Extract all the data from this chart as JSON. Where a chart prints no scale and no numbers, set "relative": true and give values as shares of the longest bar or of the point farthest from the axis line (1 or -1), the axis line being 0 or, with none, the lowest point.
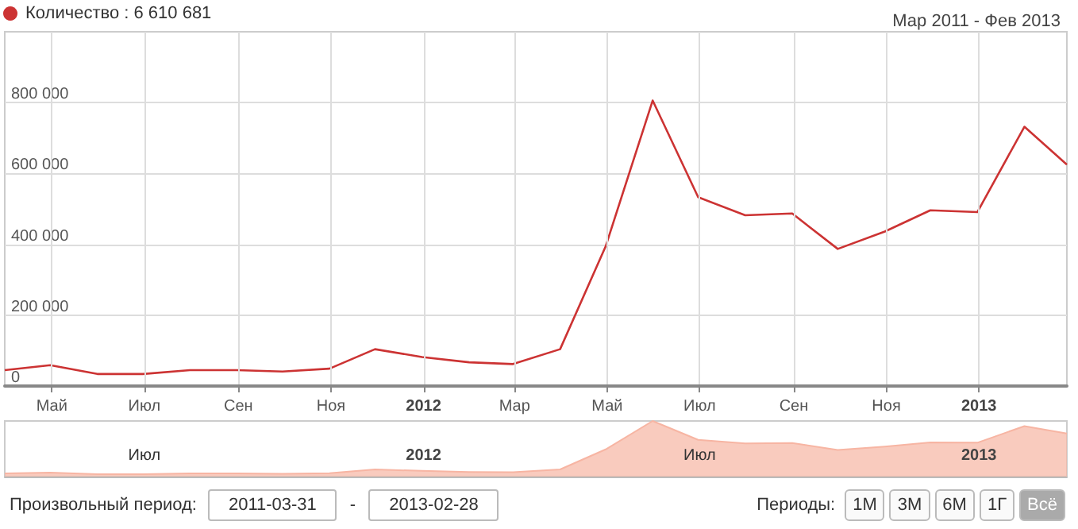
{
  "chart_data": [
    {
      "type": "line",
      "subtitle": "Мар 2011 - Фев 2013",
      "x": [
        "2011-03-31",
        "2011-04-30",
        "2011-05-31",
        "2011-06-30",
        "2011-07-31",
        "2011-08-31",
        "2011-09-30",
        "2011-10-31",
        "2011-11-30",
        "2011-12-31",
        "2012-01-31",
        "2012-02-29",
        "2012-03-31",
        "2012-04-30",
        "2012-05-31",
        "2012-06-30",
        "2012-07-31",
        "2012-08-31",
        "2012-09-30",
        "2012-10-31",
        "2012-11-30",
        "2012-12-31",
        "2013-01-31",
        "2013-02-28"
      ],
      "series": [
        {
          "name": "Количество : 6 610 681",
          "color": "#cc3333",
          "values": [
            45000,
            59000,
            34000,
            34000,
            45000,
            45000,
            41000,
            49000,
            104000,
            82000,
            67000,
            62000,
            104000,
            394000,
            806000,
            533000,
            482000,
            487000,
            387000,
            436000,
            496000,
            491000,
            732000,
            625000
          ]
        }
      ],
      "xlim": [
        "2011-03-31",
        "2013-02-28"
      ],
      "xticks": [
        {
          "value": "2011-05-01",
          "label": "Май"
        },
        {
          "value": "2011-07-01",
          "label": "Июл"
        },
        {
          "value": "2011-09-01",
          "label": "Сен"
        },
        {
          "value": "2011-11-01",
          "label": "Ноя"
        },
        {
          "value": "2012-01-01",
          "label": "2012"
        },
        {
          "value": "2012-03-01",
          "label": "Мар"
        },
        {
          "value": "2012-05-01",
          "label": "Май"
        },
        {
          "value": "2012-07-01",
          "label": "Июл"
        },
        {
          "value": "2012-09-01",
          "label": "Сен"
        },
        {
          "value": "2012-11-01",
          "label": "Ноя"
        },
        {
          "value": "2013-01-01",
          "label": "2013"
        }
      ],
      "ylim": [
        0,
        1000000
      ],
      "yticks": [
        {
          "value": 0,
          "label": "0"
        },
        {
          "value": 200000,
          "label": "200 000"
        },
        {
          "value": 400000,
          "label": "400 000"
        },
        {
          "value": 600000,
          "label": "600 000"
        },
        {
          "value": 800000,
          "label": "800 000"
        }
      ],
      "grid": true,
      "legend": "top left",
      "marker": "none"
    },
    {
      "type": "area",
      "relative": true,
      "tick_labels": "x",
      "x": [
        "2011-03-31",
        "2011-04-30",
        "2011-05-31",
        "2011-06-30",
        "2011-07-31",
        "2011-08-31",
        "2011-09-30",
        "2011-10-31",
        "2011-11-30",
        "2011-12-31",
        "2012-01-31",
        "2012-02-29",
        "2012-03-31",
        "2012-04-30",
        "2012-05-31",
        "2012-06-30",
        "2012-07-31",
        "2012-08-31",
        "2012-09-30",
        "2012-10-31",
        "2012-11-30",
        "2012-12-31",
        "2013-01-31",
        "2013-02-28"
      ],
      "series": [
        {
          "color": "#f7b5a3",
          "values": [
            0.056,
            0.073,
            0.042,
            0.042,
            0.056,
            0.056,
            0.051,
            0.061,
            0.129,
            0.102,
            0.083,
            0.077,
            0.129,
            0.489,
            1,
            0.661,
            0.598,
            0.604,
            0.48,
            0.541,
            0.615,
            0.609,
            0.908,
            0.775
          ]
        }
      ],
      "xlim": [
        "2011-03-31",
        "2013-02-28"
      ],
      "xticks": [
        {
          "value": "2011-07-01",
          "label": "Июл"
        },
        {
          "value": "2012-01-01",
          "label": "2012"
        },
        {
          "value": "2012-07-01",
          "label": "Июл"
        },
        {
          "value": "2013-01-01",
          "label": "2013"
        }
      ],
      "grid": false,
      "legend": false,
      "marker": "none",
      "annotations": [
        "Произвольный период:",
        "2011-03-31",
        "-",
        "2013-02-28",
        "Периоды:",
        "1М",
        "3М",
        "6М",
        "1Г",
        "Всё"
      ]
    }
  ]
}
